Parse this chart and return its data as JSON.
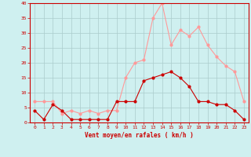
{
  "hours": [
    0,
    1,
    2,
    3,
    4,
    5,
    6,
    7,
    8,
    9,
    10,
    11,
    12,
    13,
    14,
    15,
    16,
    17,
    18,
    19,
    20,
    21,
    22,
    23
  ],
  "wind_avg": [
    4,
    1,
    6,
    4,
    1,
    1,
    1,
    1,
    1,
    7,
    7,
    7,
    14,
    15,
    16,
    17,
    15,
    12,
    7,
    7,
    6,
    6,
    4,
    1
  ],
  "wind_gust": [
    7,
    7,
    7,
    3,
    4,
    3,
    4,
    3,
    4,
    4,
    15,
    20,
    21,
    35,
    40,
    26,
    31,
    29,
    32,
    26,
    22,
    19,
    17,
    7
  ],
  "xlabel": "Vent moyen/en rafales ( km/h )",
  "ylim": [
    0,
    40
  ],
  "yticks": [
    0,
    5,
    10,
    15,
    20,
    25,
    30,
    35,
    40
  ],
  "bg_color": "#cff0f0",
  "grid_color": "#aacccc",
  "avg_color": "#cc0000",
  "gust_color": "#ff9999",
  "marker_size": 2.0,
  "line_width": 0.8
}
